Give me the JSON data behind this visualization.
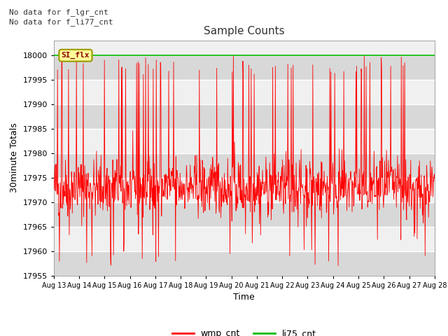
{
  "title": "Sample Counts",
  "xlabel": "Time",
  "ylabel": "30minute Totals",
  "ylim": [
    17955,
    18003
  ],
  "yticks": [
    17955,
    17960,
    17965,
    17970,
    17975,
    17980,
    17985,
    17990,
    17995,
    18000
  ],
  "x_labels": [
    "Aug 13",
    "Aug 14",
    "Aug 15",
    "Aug 16",
    "Aug 17",
    "Aug 18",
    "Aug 19",
    "Aug 20",
    "Aug 21",
    "Aug 22",
    "Aug 23",
    "Aug 24",
    "Aug 25",
    "Aug 26",
    "Aug 27",
    "Aug 28"
  ],
  "no_data_text_1": "No data for f_lgr_cnt",
  "no_data_text_2": "No data for f_li77_cnt",
  "annotation_text": "SI_flx",
  "li75_value": 18000,
  "wmp_color": "#ff0000",
  "li75_color": "#00bb00",
  "background_color": "#ffffff",
  "plot_bg_light": "#f0f0f0",
  "plot_bg_dark": "#d8d8d8",
  "grid_color": "#ffffff",
  "seed": 42,
  "n_points": 1008
}
